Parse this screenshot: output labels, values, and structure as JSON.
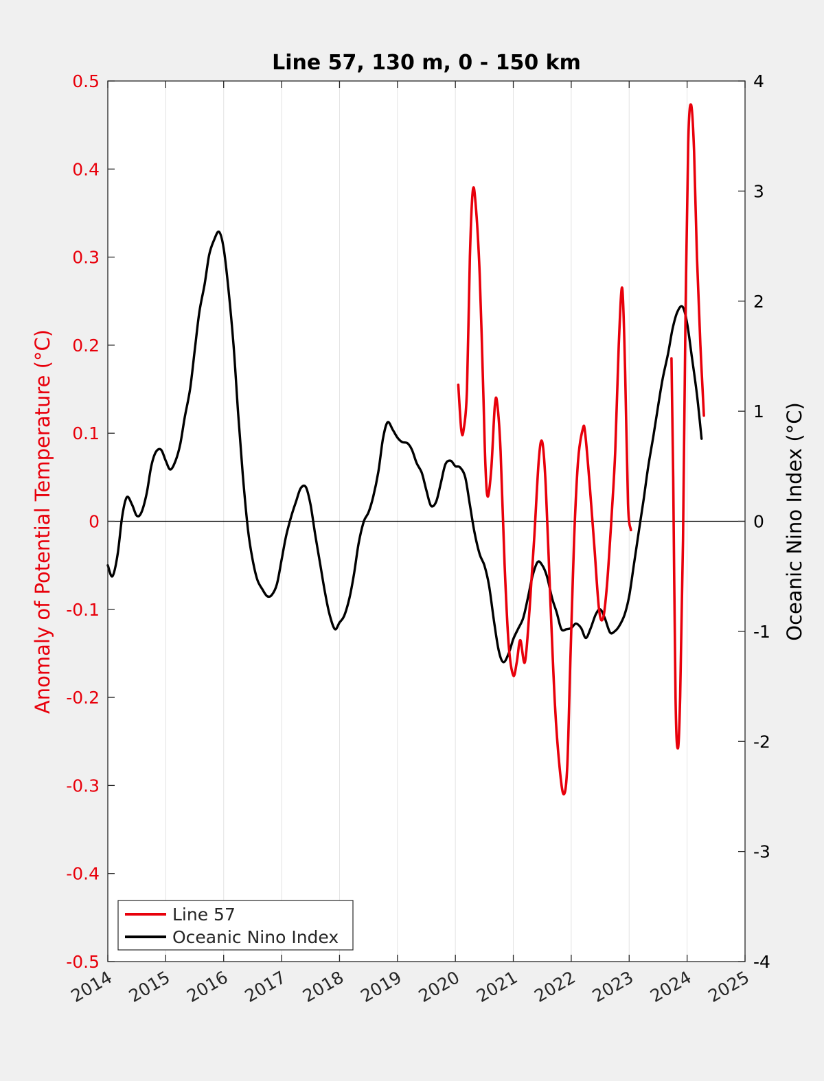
{
  "chart_data": {
    "type": "line",
    "title": "Line 57, 130 m, 0 - 150 km",
    "xlim": [
      2014,
      2025
    ],
    "x_ticks": [
      "2014",
      "2015",
      "2016",
      "2017",
      "2018",
      "2019",
      "2020",
      "2021",
      "2022",
      "2023",
      "2024",
      "2025"
    ],
    "left_axis": {
      "label": "Anomaly of Potential Temperature (°C)",
      "color": "#e8000b",
      "lim": [
        -0.5,
        0.5
      ],
      "ticks": [
        "-0.5",
        "-0.4",
        "-0.3",
        "-0.2",
        "-0.1",
        "0",
        "0.1",
        "0.2",
        "0.3",
        "0.4",
        "0.5"
      ]
    },
    "right_axis": {
      "label": "Oceanic Nino Index (°C)",
      "color": "#000000",
      "lim": [
        -4,
        4
      ],
      "ticks": [
        "-4",
        "-3",
        "-2",
        "-1",
        "0",
        "1",
        "2",
        "3",
        "4"
      ]
    },
    "grid": "vertical",
    "legend": {
      "placement": "bottom-left",
      "entries": [
        "Line 57",
        "Oceanic Nino Index"
      ]
    },
    "series": [
      {
        "name": "Line 57",
        "color": "#e8000b",
        "axis": "left",
        "segments": [
          [
            [
              2020.05,
              0.155
            ],
            [
              2020.1,
              0.105
            ],
            [
              2020.14,
              0.103
            ],
            [
              2020.2,
              0.15
            ],
            [
              2020.25,
              0.3
            ],
            [
              2020.3,
              0.375
            ],
            [
              2020.35,
              0.36
            ],
            [
              2020.42,
              0.28
            ],
            [
              2020.48,
              0.15
            ],
            [
              2020.52,
              0.06
            ],
            [
              2020.56,
              0.028
            ],
            [
              2020.62,
              0.06
            ],
            [
              2020.68,
              0.13
            ],
            [
              2020.72,
              0.135
            ],
            [
              2020.78,
              0.08
            ],
            [
              2020.85,
              -0.05
            ],
            [
              2020.92,
              -0.14
            ],
            [
              2021.0,
              -0.175
            ],
            [
              2021.06,
              -0.16
            ],
            [
              2021.12,
              -0.135
            ],
            [
              2021.2,
              -0.16
            ],
            [
              2021.28,
              -0.1
            ],
            [
              2021.36,
              -0.02
            ],
            [
              2021.44,
              0.07
            ],
            [
              2021.5,
              0.09
            ],
            [
              2021.56,
              0.04
            ],
            [
              2021.64,
              -0.09
            ],
            [
              2021.72,
              -0.21
            ],
            [
              2021.8,
              -0.28
            ],
            [
              2021.87,
              -0.31
            ],
            [
              2021.93,
              -0.28
            ],
            [
              2021.98,
              -0.17
            ],
            [
              2022.05,
              -0.02
            ],
            [
              2022.12,
              0.07
            ],
            [
              2022.2,
              0.105
            ],
            [
              2022.24,
              0.1
            ],
            [
              2022.32,
              0.04
            ],
            [
              2022.4,
              -0.03
            ],
            [
              2022.48,
              -0.1
            ],
            [
              2022.55,
              -0.11
            ],
            [
              2022.62,
              -0.07
            ],
            [
              2022.7,
              0.01
            ],
            [
              2022.76,
              0.08
            ],
            [
              2022.82,
              0.2
            ],
            [
              2022.88,
              0.265
            ],
            [
              2022.93,
              0.17
            ],
            [
              2022.98,
              0.02
            ],
            [
              2023.03,
              -0.01
            ]
          ],
          [
            [
              2023.73,
              0.185
            ],
            [
              2023.76,
              0.05
            ],
            [
              2023.8,
              -0.2
            ],
            [
              2023.84,
              -0.258
            ],
            [
              2023.88,
              -0.2
            ],
            [
              2023.93,
              -0.02
            ],
            [
              2023.97,
              0.22
            ],
            [
              2024.02,
              0.43
            ],
            [
              2024.07,
              0.473
            ],
            [
              2024.12,
              0.42
            ],
            [
              2024.17,
              0.3
            ],
            [
              2024.23,
              0.2
            ],
            [
              2024.29,
              0.12
            ]
          ]
        ]
      },
      {
        "name": "Oceanic Nino Index",
        "color": "#000000",
        "axis": "right",
        "points": [
          [
            2014.0,
            -0.4
          ],
          [
            2014.08,
            -0.5
          ],
          [
            2014.17,
            -0.3
          ],
          [
            2014.25,
            0.05
          ],
          [
            2014.33,
            0.22
          ],
          [
            2014.42,
            0.15
          ],
          [
            2014.5,
            0.05
          ],
          [
            2014.58,
            0.08
          ],
          [
            2014.67,
            0.25
          ],
          [
            2014.75,
            0.5
          ],
          [
            2014.83,
            0.63
          ],
          [
            2014.92,
            0.65
          ],
          [
            2015.0,
            0.55
          ],
          [
            2015.08,
            0.47
          ],
          [
            2015.17,
            0.55
          ],
          [
            2015.25,
            0.7
          ],
          [
            2015.33,
            0.95
          ],
          [
            2015.42,
            1.2
          ],
          [
            2015.5,
            1.55
          ],
          [
            2015.58,
            1.9
          ],
          [
            2015.67,
            2.15
          ],
          [
            2015.75,
            2.42
          ],
          [
            2015.83,
            2.55
          ],
          [
            2015.92,
            2.63
          ],
          [
            2016.0,
            2.48
          ],
          [
            2016.08,
            2.12
          ],
          [
            2016.17,
            1.6
          ],
          [
            2016.25,
            0.98
          ],
          [
            2016.33,
            0.42
          ],
          [
            2016.42,
            -0.08
          ],
          [
            2016.5,
            -0.35
          ],
          [
            2016.58,
            -0.53
          ],
          [
            2016.67,
            -0.62
          ],
          [
            2016.75,
            -0.68
          ],
          [
            2016.83,
            -0.67
          ],
          [
            2016.92,
            -0.57
          ],
          [
            2017.0,
            -0.35
          ],
          [
            2017.08,
            -0.13
          ],
          [
            2017.17,
            0.05
          ],
          [
            2017.25,
            0.18
          ],
          [
            2017.33,
            0.3
          ],
          [
            2017.42,
            0.31
          ],
          [
            2017.5,
            0.15
          ],
          [
            2017.58,
            -0.12
          ],
          [
            2017.67,
            -0.4
          ],
          [
            2017.75,
            -0.65
          ],
          [
            2017.83,
            -0.85
          ],
          [
            2017.92,
            -0.98
          ],
          [
            2018.0,
            -0.92
          ],
          [
            2018.08,
            -0.86
          ],
          [
            2018.17,
            -0.7
          ],
          [
            2018.25,
            -0.48
          ],
          [
            2018.33,
            -0.2
          ],
          [
            2018.42,
            0.0
          ],
          [
            2018.5,
            0.08
          ],
          [
            2018.58,
            0.22
          ],
          [
            2018.67,
            0.45
          ],
          [
            2018.75,
            0.75
          ],
          [
            2018.83,
            0.9
          ],
          [
            2018.92,
            0.83
          ],
          [
            2019.0,
            0.76
          ],
          [
            2019.08,
            0.72
          ],
          [
            2019.17,
            0.71
          ],
          [
            2019.25,
            0.65
          ],
          [
            2019.33,
            0.53
          ],
          [
            2019.42,
            0.44
          ],
          [
            2019.5,
            0.28
          ],
          [
            2019.58,
            0.14
          ],
          [
            2019.67,
            0.18
          ],
          [
            2019.75,
            0.35
          ],
          [
            2019.83,
            0.52
          ],
          [
            2019.92,
            0.55
          ],
          [
            2020.0,
            0.5
          ],
          [
            2020.08,
            0.49
          ],
          [
            2020.17,
            0.4
          ],
          [
            2020.25,
            0.15
          ],
          [
            2020.33,
            -0.1
          ],
          [
            2020.42,
            -0.3
          ],
          [
            2020.5,
            -0.4
          ],
          [
            2020.58,
            -0.58
          ],
          [
            2020.67,
            -0.92
          ],
          [
            2020.75,
            -1.18
          ],
          [
            2020.83,
            -1.28
          ],
          [
            2020.92,
            -1.2
          ],
          [
            2021.0,
            -1.07
          ],
          [
            2021.08,
            -0.98
          ],
          [
            2021.17,
            -0.88
          ],
          [
            2021.25,
            -0.7
          ],
          [
            2021.33,
            -0.5
          ],
          [
            2021.42,
            -0.37
          ],
          [
            2021.5,
            -0.4
          ],
          [
            2021.58,
            -0.5
          ],
          [
            2021.67,
            -0.7
          ],
          [
            2021.75,
            -0.83
          ],
          [
            2021.83,
            -0.98
          ],
          [
            2021.92,
            -0.98
          ],
          [
            2022.0,
            -0.97
          ],
          [
            2022.08,
            -0.93
          ],
          [
            2022.17,
            -0.97
          ],
          [
            2022.25,
            -1.06
          ],
          [
            2022.33,
            -0.98
          ],
          [
            2022.42,
            -0.85
          ],
          [
            2022.5,
            -0.8
          ],
          [
            2022.58,
            -0.88
          ],
          [
            2022.67,
            -1.01
          ],
          [
            2022.75,
            -1.0
          ],
          [
            2022.83,
            -0.95
          ],
          [
            2022.92,
            -0.85
          ],
          [
            2023.0,
            -0.68
          ],
          [
            2023.08,
            -0.4
          ],
          [
            2023.17,
            -0.08
          ],
          [
            2023.25,
            0.2
          ],
          [
            2023.33,
            0.5
          ],
          [
            2023.42,
            0.78
          ],
          [
            2023.5,
            1.05
          ],
          [
            2023.58,
            1.3
          ],
          [
            2023.67,
            1.52
          ],
          [
            2023.75,
            1.75
          ],
          [
            2023.83,
            1.9
          ],
          [
            2023.92,
            1.95
          ],
          [
            2024.0,
            1.8
          ],
          [
            2024.08,
            1.5
          ],
          [
            2024.17,
            1.15
          ],
          [
            2024.25,
            0.75
          ]
        ]
      }
    ]
  }
}
